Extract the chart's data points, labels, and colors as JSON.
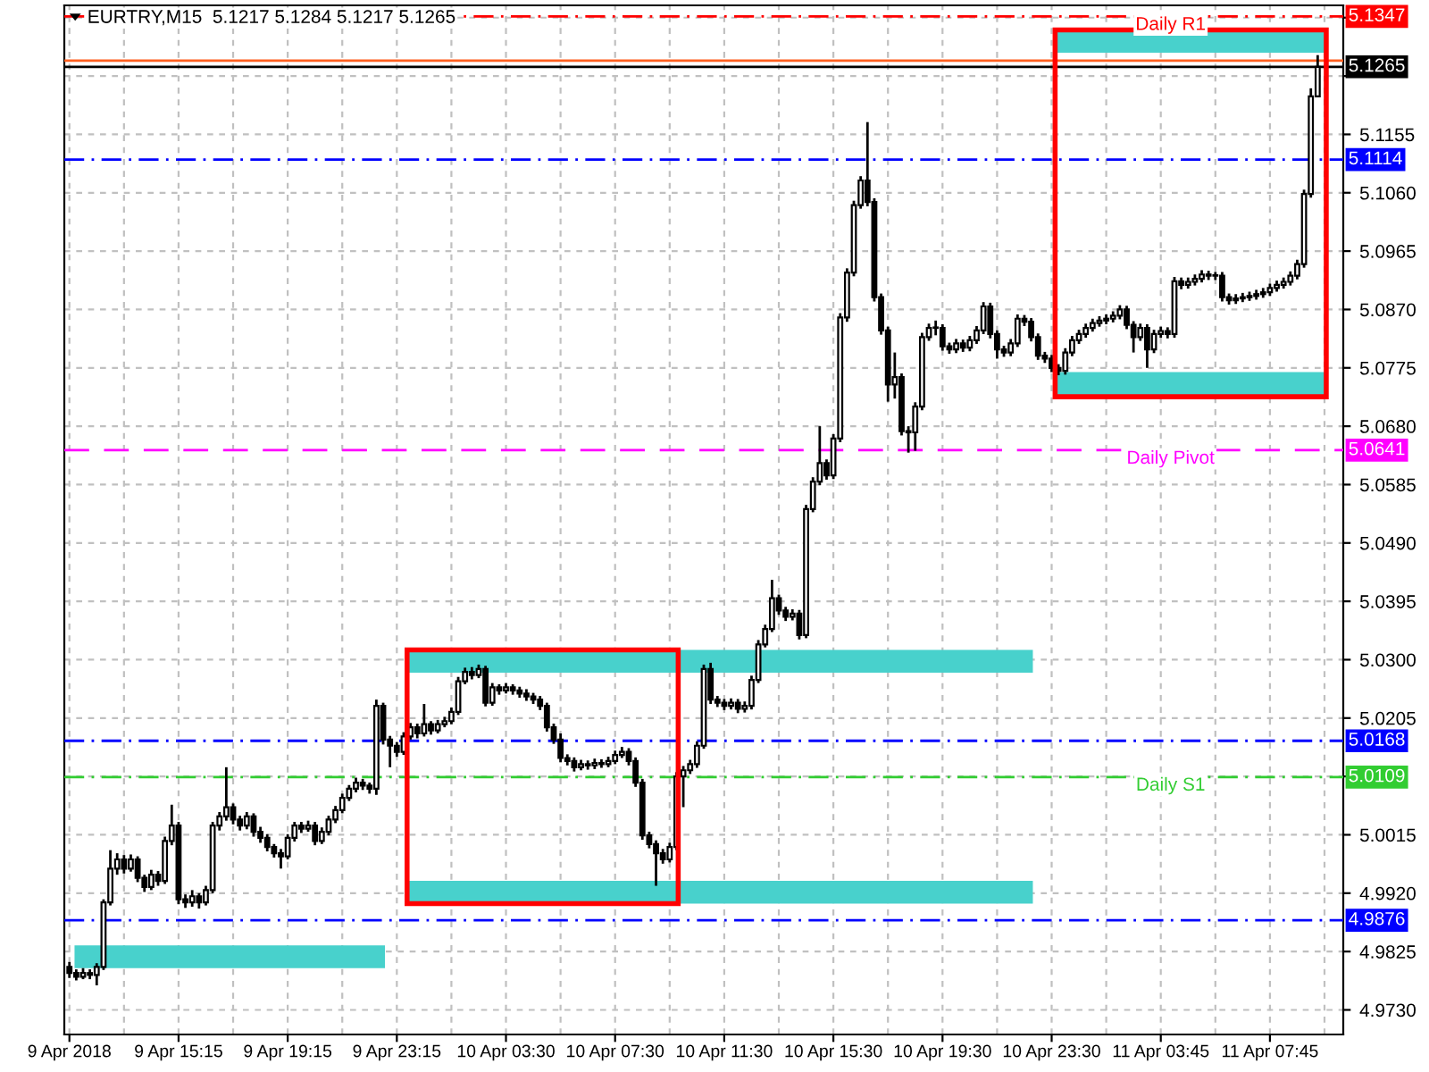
{
  "chart_data": {
    "type": "candlestick",
    "title": "EURTRY,M15  5.1217 5.1284 5.1217 5.1265",
    "categories": [
      "9 Apr 2018",
      null,
      null,
      null,
      null,
      null,
      null,
      null,
      null,
      null,
      null,
      null,
      null,
      null,
      null,
      null,
      "9 Apr 15:15",
      null,
      null,
      null,
      null,
      null,
      null,
      null,
      null,
      null,
      null,
      null,
      null,
      null,
      null,
      null,
      "9 Apr 19:15",
      null,
      null,
      null,
      null,
      null,
      null,
      null,
      null,
      null,
      null,
      null,
      null,
      null,
      null,
      null,
      "9 Apr 23:15",
      null,
      null,
      null,
      null,
      null,
      null,
      null,
      null,
      null,
      null,
      null,
      null,
      null,
      null,
      null,
      "10 Apr 03:30",
      null,
      null,
      null,
      null,
      null,
      null,
      null,
      null,
      null,
      null,
      null,
      null,
      null,
      null,
      null,
      "10 Apr 07:30",
      null,
      null,
      null,
      null,
      null,
      null,
      null,
      null,
      null,
      null,
      null,
      null,
      null,
      null,
      null,
      "10 Apr 11:30",
      null,
      null,
      null,
      null,
      null,
      null,
      null,
      null,
      null,
      null,
      null,
      null,
      null,
      null,
      null,
      "10 Apr 15:30",
      null,
      null,
      null,
      null,
      null,
      null,
      null,
      null,
      null,
      null,
      null,
      null,
      null,
      null,
      null,
      "10 Apr 19:30",
      null,
      null,
      null,
      null,
      null,
      null,
      null,
      null,
      null,
      null,
      null,
      null,
      null,
      null,
      null,
      "10 Apr 23:30",
      null,
      null,
      null,
      null,
      null,
      null,
      null,
      null,
      null,
      null,
      null,
      null,
      null,
      null,
      null,
      "11 Apr 03:45",
      null,
      null,
      null,
      null,
      null,
      null,
      null,
      null,
      null,
      null,
      null,
      null,
      null,
      null,
      null,
      "11 Apr 07:45",
      null,
      null,
      null,
      null,
      null,
      null,
      null
    ],
    "ohlc": [
      [
        4.98,
        4.9808,
        4.9782,
        4.979
      ],
      [
        4.979,
        4.9796,
        4.9778,
        4.9784
      ],
      [
        4.9784,
        4.9798,
        4.978,
        4.979
      ],
      [
        4.979,
        4.9796,
        4.978,
        4.9787
      ],
      [
        4.9787,
        4.9806,
        4.977,
        4.98
      ],
      [
        4.98,
        4.991,
        4.9795,
        4.9905
      ],
      [
        4.9905,
        4.999,
        4.99,
        4.996
      ],
      [
        4.996,
        4.9985,
        4.995,
        4.9975
      ],
      [
        4.9975,
        4.9982,
        4.9952,
        4.996
      ],
      [
        4.996,
        4.9983,
        4.9955,
        4.9975
      ],
      [
        4.9975,
        4.998,
        4.9938,
        4.9945
      ],
      [
        4.9945,
        4.995,
        4.9922,
        4.993
      ],
      [
        4.993,
        4.9958,
        4.9925,
        4.995
      ],
      [
        4.995,
        4.9956,
        4.9932,
        4.994
      ],
      [
        4.994,
        5.0012,
        4.9935,
        5.0005
      ],
      [
        5.0005,
        5.0064,
        4.9998,
        5.003
      ],
      [
        5.003,
        5.0036,
        4.9902,
        4.991
      ],
      [
        4.991,
        4.9918,
        4.9896,
        4.9905
      ],
      [
        4.9905,
        4.9925,
        4.9898,
        4.9915
      ],
      [
        4.9915,
        4.992,
        4.9895,
        4.9905
      ],
      [
        4.9905,
        4.9932,
        4.99,
        4.9925
      ],
      [
        4.9925,
        5.0036,
        4.992,
        5.003
      ],
      [
        5.003,
        5.0052,
        5.0022,
        5.0045
      ],
      [
        5.0045,
        5.0125,
        5.0038,
        5.006
      ],
      [
        5.006,
        5.0066,
        5.0032,
        5.004
      ],
      [
        5.004,
        5.0046,
        5.0022,
        5.003
      ],
      [
        5.003,
        5.0052,
        5.0024,
        5.0045
      ],
      [
        5.0045,
        5.005,
        5.0012,
        5.002
      ],
      [
        5.002,
        5.0028,
        5.0002,
        5.001
      ],
      [
        5.001,
        5.0016,
        4.9988,
        4.9995
      ],
      [
        4.9995,
        5.0,
        4.9978,
        4.9985
      ],
      [
        4.9985,
        4.9992,
        4.996,
        4.998
      ],
      [
        4.998,
        5.0016,
        4.9975,
        5.001
      ],
      [
        5.001,
        5.0036,
        5.0004,
        5.003
      ],
      [
        5.003,
        5.0036,
        5.0018,
        5.0025
      ],
      [
        5.0025,
        5.0038,
        5.002,
        5.003
      ],
      [
        5.003,
        5.0036,
        4.9998,
        5.0005
      ],
      [
        5.0005,
        5.0027,
        5.0,
        5.002
      ],
      [
        5.002,
        5.0046,
        5.0014,
        5.004
      ],
      [
        5.004,
        5.0062,
        5.0034,
        5.0055
      ],
      [
        5.0055,
        5.0082,
        5.005,
        5.0075
      ],
      [
        5.0075,
        5.0096,
        5.007,
        5.009
      ],
      [
        5.009,
        5.0108,
        5.0084,
        5.01
      ],
      [
        5.01,
        5.0106,
        5.0088,
        5.0095
      ],
      [
        5.0095,
        5.01,
        5.0082,
        5.009
      ],
      [
        5.009,
        5.0235,
        5.008,
        5.0225
      ],
      [
        5.0225,
        5.023,
        5.0162,
        5.017
      ],
      [
        5.017,
        5.0176,
        5.0125,
        5.016
      ],
      [
        5.016,
        5.0166,
        5.0142,
        5.015
      ],
      [
        5.015,
        5.0182,
        5.0145,
        5.0175
      ],
      [
        5.0175,
        5.0197,
        5.017,
        5.019
      ],
      [
        5.019,
        5.0196,
        5.0172,
        5.018
      ],
      [
        5.018,
        5.0228,
        5.0175,
        5.0195
      ],
      [
        5.0195,
        5.02,
        5.0178,
        5.0185
      ],
      [
        5.0185,
        5.0202,
        5.018,
        5.0195
      ],
      [
        5.0195,
        5.0207,
        5.019,
        5.02
      ],
      [
        5.02,
        5.0222,
        5.0195,
        5.0215
      ],
      [
        5.0215,
        5.0272,
        5.021,
        5.0265
      ],
      [
        5.0265,
        5.0287,
        5.026,
        5.028
      ],
      [
        5.028,
        5.0288,
        5.0268,
        5.0275
      ],
      [
        5.0275,
        5.0292,
        5.027,
        5.0285
      ],
      [
        5.0285,
        5.029,
        5.0224,
        5.023
      ],
      [
        5.023,
        5.0262,
        5.0225,
        5.0255
      ],
      [
        5.0255,
        5.026,
        5.0243,
        5.025
      ],
      [
        5.025,
        5.0262,
        5.0245,
        5.0255
      ],
      [
        5.0255,
        5.026,
        5.0243,
        5.025
      ],
      [
        5.025,
        5.0256,
        5.0238,
        5.0245
      ],
      [
        5.0245,
        5.0252,
        5.0233,
        5.024
      ],
      [
        5.024,
        5.0246,
        5.0228,
        5.0235
      ],
      [
        5.0235,
        5.0241,
        5.0218,
        5.0225
      ],
      [
        5.0225,
        5.023,
        5.0183,
        5.019
      ],
      [
        5.019,
        5.0196,
        5.0163,
        5.017
      ],
      [
        5.017,
        5.018,
        5.0133,
        5.014
      ],
      [
        5.014,
        5.0146,
        5.0128,
        5.0135
      ],
      [
        5.0135,
        5.0141,
        5.0118,
        5.0125
      ],
      [
        5.0125,
        5.0137,
        5.012,
        5.013
      ],
      [
        5.013,
        5.0136,
        5.0121,
        5.0128
      ],
      [
        5.0128,
        5.0139,
        5.0122,
        5.0132
      ],
      [
        5.0132,
        5.0138,
        5.0124,
        5.013
      ],
      [
        5.013,
        5.0142,
        5.0125,
        5.0135
      ],
      [
        5.0135,
        5.0152,
        5.013,
        5.0145
      ],
      [
        5.0145,
        5.0158,
        5.014,
        5.015
      ],
      [
        5.015,
        5.0156,
        5.0128,
        5.0135
      ],
      [
        5.0135,
        5.0141,
        5.0093,
        5.01
      ],
      [
        5.01,
        5.0106,
        5.0007,
        5.0014
      ],
      [
        5.0014,
        5.002,
        4.9993,
        5.0
      ],
      [
        5.0,
        5.0006,
        4.9932,
        4.9985
      ],
      [
        4.9985,
        4.9992,
        4.9968,
        4.9975
      ],
      [
        4.9975,
        5.0002,
        4.997,
        4.9995
      ],
      [
        4.9995,
        5.0117,
        4.999,
        5.011
      ],
      [
        5.011,
        5.0127,
        5.006,
        5.012
      ],
      [
        5.012,
        5.0137,
        5.0114,
        5.013
      ],
      [
        5.013,
        5.0167,
        5.0124,
        5.016
      ],
      [
        5.016,
        5.0292,
        5.0155,
        5.0285
      ],
      [
        5.0285,
        5.0295,
        5.0228,
        5.0235
      ],
      [
        5.0235,
        5.0241,
        5.0223,
        5.023
      ],
      [
        5.023,
        5.0236,
        5.0218,
        5.0225
      ],
      [
        5.0225,
        5.0237,
        5.0219,
        5.023
      ],
      [
        5.023,
        5.0236,
        5.0213,
        5.022
      ],
      [
        5.022,
        5.0232,
        5.0214,
        5.0225
      ],
      [
        5.0225,
        5.0274,
        5.0219,
        5.0267
      ],
      [
        5.0267,
        5.0332,
        5.0262,
        5.0325
      ],
      [
        5.0325,
        5.0357,
        5.032,
        5.035
      ],
      [
        5.035,
        5.043,
        5.0345,
        5.04
      ],
      [
        5.04,
        5.0406,
        5.0373,
        5.038
      ],
      [
        5.038,
        5.0386,
        5.0363,
        5.037
      ],
      [
        5.037,
        5.0382,
        5.0364,
        5.0375
      ],
      [
        5.0375,
        5.0381,
        5.0333,
        5.034
      ],
      [
        5.034,
        5.0552,
        5.0335,
        5.0545
      ],
      [
        5.0545,
        5.0597,
        5.054,
        5.059
      ],
      [
        5.059,
        5.068,
        5.0584,
        5.062
      ],
      [
        5.062,
        5.0626,
        5.0593,
        5.06
      ],
      [
        5.06,
        5.0667,
        5.0594,
        5.066
      ],
      [
        5.066,
        5.0864,
        5.0654,
        5.0857
      ],
      [
        5.0857,
        5.0937,
        5.085,
        5.093
      ],
      [
        5.093,
        5.1047,
        5.0924,
        5.104
      ],
      [
        5.104,
        5.1087,
        5.1034,
        5.108
      ],
      [
        5.108,
        5.1175,
        5.1038,
        5.1045
      ],
      [
        5.1045,
        5.1051,
        5.0883,
        5.089
      ],
      [
        5.089,
        5.0896,
        5.0829,
        5.0836
      ],
      [
        5.0836,
        5.0842,
        5.072,
        5.0748
      ],
      [
        5.0748,
        5.08,
        5.0725,
        5.076
      ],
      [
        5.076,
        5.0766,
        5.0665,
        5.0672
      ],
      [
        5.0672,
        5.068,
        5.0637,
        5.067
      ],
      [
        5.067,
        5.0719,
        5.064,
        5.0712
      ],
      [
        5.0712,
        5.0832,
        5.0706,
        5.0825
      ],
      [
        5.0825,
        5.0847,
        5.0819,
        5.084
      ],
      [
        5.084,
        5.0852,
        5.0828,
        5.084
      ],
      [
        5.084,
        5.0846,
        5.0803,
        5.081
      ],
      [
        5.081,
        5.0816,
        5.0798,
        5.0805
      ],
      [
        5.0805,
        5.0822,
        5.0799,
        5.0815
      ],
      [
        5.0815,
        5.0821,
        5.0801,
        5.0808
      ],
      [
        5.0808,
        5.0827,
        5.0802,
        5.082
      ],
      [
        5.082,
        5.0843,
        5.0814,
        5.0836
      ],
      [
        5.0836,
        5.0882,
        5.083,
        5.0875
      ],
      [
        5.0875,
        5.0881,
        5.0823,
        5.083
      ],
      [
        5.083,
        5.0836,
        5.079,
        5.0805
      ],
      [
        5.0805,
        5.0811,
        5.0793,
        5.08
      ],
      [
        5.08,
        5.0822,
        5.0794,
        5.0815
      ],
      [
        5.0815,
        5.0862,
        5.0809,
        5.0855
      ],
      [
        5.0855,
        5.0861,
        5.0843,
        5.085
      ],
      [
        5.085,
        5.0856,
        5.0818,
        5.0825
      ],
      [
        5.0825,
        5.0831,
        5.0788,
        5.0795
      ],
      [
        5.0795,
        5.0801,
        5.0783,
        5.079
      ],
      [
        5.079,
        5.0796,
        5.0768,
        5.0775
      ],
      [
        5.0775,
        5.0781,
        5.0763,
        5.077
      ],
      [
        5.077,
        5.0807,
        5.0764,
        5.08
      ],
      [
        5.08,
        5.0827,
        5.0794,
        5.082
      ],
      [
        5.082,
        5.0837,
        5.0814,
        5.083
      ],
      [
        5.083,
        5.0847,
        5.0824,
        5.084
      ],
      [
        5.084,
        5.0855,
        5.0834,
        5.0848
      ],
      [
        5.0848,
        5.0859,
        5.0842,
        5.0852
      ],
      [
        5.0852,
        5.0862,
        5.0846,
        5.0855
      ],
      [
        5.0855,
        5.0867,
        5.0849,
        5.086
      ],
      [
        5.086,
        5.0877,
        5.0854,
        5.087
      ],
      [
        5.087,
        5.0876,
        5.0838,
        5.0845
      ],
      [
        5.0845,
        5.0851,
        5.08,
        5.0825
      ],
      [
        5.0825,
        5.0847,
        5.0819,
        5.084
      ],
      [
        5.084,
        5.0846,
        5.0775,
        5.0805
      ],
      [
        5.0805,
        5.0837,
        5.0799,
        5.083
      ],
      [
        5.083,
        5.0842,
        5.0824,
        5.0835
      ],
      [
        5.0835,
        5.0841,
        5.0823,
        5.083
      ],
      [
        5.083,
        5.0923,
        5.0824,
        5.0916
      ],
      [
        5.0916,
        5.0922,
        5.0903,
        5.091
      ],
      [
        5.091,
        5.0922,
        5.0904,
        5.0915
      ],
      [
        5.0915,
        5.0927,
        5.0909,
        5.092
      ],
      [
        5.092,
        5.0934,
        5.0914,
        5.0927
      ],
      [
        5.0927,
        5.0933,
        5.0918,
        5.0925
      ],
      [
        5.0925,
        5.0931,
        5.0918,
        5.0925
      ],
      [
        5.0925,
        5.0931,
        5.0883,
        5.089
      ],
      [
        5.089,
        5.0896,
        5.0878,
        5.0885
      ],
      [
        5.0885,
        5.0895,
        5.0879,
        5.0888
      ],
      [
        5.0888,
        5.0897,
        5.0882,
        5.089
      ],
      [
        5.089,
        5.0899,
        5.0884,
        5.0892
      ],
      [
        5.0892,
        5.0902,
        5.0886,
        5.0895
      ],
      [
        5.0895,
        5.0905,
        5.0889,
        5.0898
      ],
      [
        5.0898,
        5.0912,
        5.0892,
        5.0905
      ],
      [
        5.0905,
        5.0917,
        5.0899,
        5.091
      ],
      [
        5.091,
        5.0922,
        5.0904,
        5.0915
      ],
      [
        5.0915,
        5.0932,
        5.0909,
        5.0925
      ],
      [
        5.0925,
        5.0951,
        5.0919,
        5.0944
      ],
      [
        5.0944,
        5.1065,
        5.0938,
        5.1058
      ],
      [
        5.1058,
        5.123,
        5.1052,
        5.1217
      ],
      [
        5.1217,
        5.1284,
        5.1217,
        5.1265
      ]
    ],
    "ylim": [
      4.969,
      5.1365
    ],
    "yticks": [
      {
        "value": 4.973,
        "label": "4.9730"
      },
      {
        "value": 4.9825,
        "label": "4.9825"
      },
      {
        "value": 4.992,
        "label": "4.9920"
      },
      {
        "value": 5.0015,
        "label": "5.0015"
      },
      {
        "value": 5.011,
        "label": null
      },
      {
        "value": 5.0205,
        "label": "5.0205"
      },
      {
        "value": 5.03,
        "label": "5.0300"
      },
      {
        "value": 5.0395,
        "label": "5.0395"
      },
      {
        "value": 5.049,
        "label": "5.0490"
      },
      {
        "value": 5.0585,
        "label": "5.0585"
      },
      {
        "value": 5.068,
        "label": "5.0680"
      },
      {
        "value": 5.0775,
        "label": "5.0775"
      },
      {
        "value": 5.087,
        "label": "5.0870"
      },
      {
        "value": 5.0965,
        "label": "5.0965"
      },
      {
        "value": 5.106,
        "label": "5.1060"
      },
      {
        "value": 5.1155,
        "label": "5.1155"
      },
      {
        "value": 5.125,
        "label": null
      },
      {
        "value": 5.1345,
        "label": null
      }
    ],
    "grid": true,
    "ref_lines": [
      {
        "axis": "y",
        "value": 5.1347,
        "label": "5.1347",
        "color": "#ff0000",
        "line_style": "dashdot"
      },
      {
        "axis": "y",
        "value": 5.1275,
        "label": null,
        "color": "#ff6020",
        "line_style": "solid"
      },
      {
        "axis": "y",
        "value": 5.1265,
        "label": "5.1265",
        "color": "#000000",
        "line_style": "solid"
      },
      {
        "axis": "y",
        "value": 5.1114,
        "label": "5.1114",
        "color": "#0000ff",
        "line_style": "dashdot"
      },
      {
        "axis": "y",
        "value": 5.0641,
        "label": "5.0641",
        "color": "#ff00ff",
        "line_style": "dashed"
      },
      {
        "axis": "y",
        "value": 5.0168,
        "label": "5.0168",
        "color": "#0000ff",
        "line_style": "dashdot"
      },
      {
        "axis": "y",
        "value": 5.0109,
        "label": "5.0109",
        "color": "#32cd32",
        "line_style": "dashdot"
      },
      {
        "axis": "y",
        "value": 4.9876,
        "label": "4.9876",
        "color": "#0000ff",
        "line_style": "dashdot"
      }
    ],
    "bands": [
      {
        "axis": "y",
        "from": 4.9798,
        "to": 4.9835,
        "color": "#48d1cc"
      },
      {
        "axis": "y",
        "from": 5.0279,
        "to": 5.0316,
        "color": "#48d1cc"
      },
      {
        "axis": "y",
        "from": 4.9903,
        "to": 4.994,
        "color": "#48d1cc"
      },
      {
        "axis": "y",
        "from": 5.1288,
        "to": 5.1325,
        "color": "#48d1cc"
      },
      {
        "axis": "y",
        "from": 5.0728,
        "to": 5.0768,
        "color": "#48d1cc"
      }
    ],
    "annotations": [
      {
        "text": "Daily R1",
        "y": 5.1347
      },
      {
        "text": "Daily Pivot",
        "y": 5.0641
      },
      {
        "text": "Daily S1",
        "y": 5.0109
      }
    ]
  }
}
